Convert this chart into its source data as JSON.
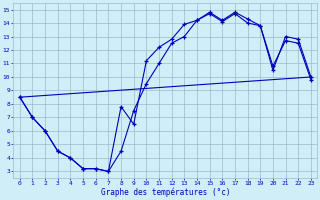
{
  "xlabel": "Graphe des températures (°c)",
  "xlim": [
    -0.5,
    23.5
  ],
  "ylim": [
    2.5,
    15.5
  ],
  "yticks": [
    3,
    4,
    5,
    6,
    7,
    8,
    9,
    10,
    11,
    12,
    13,
    14,
    15
  ],
  "xticks": [
    0,
    1,
    2,
    3,
    4,
    5,
    6,
    7,
    8,
    9,
    10,
    11,
    12,
    13,
    14,
    15,
    16,
    17,
    18,
    19,
    20,
    21,
    22,
    23
  ],
  "background_color": "#d0eef8",
  "grid_color": "#a0b8cc",
  "line_color": "#0000bb",
  "line1_x": [
    0,
    1,
    2,
    3,
    4,
    5,
    6,
    7,
    8,
    9,
    10,
    11,
    12,
    13,
    14,
    15,
    16,
    17,
    18,
    19,
    20,
    21,
    22,
    23
  ],
  "line1_y": [
    8.5,
    7.0,
    6.0,
    4.5,
    4.0,
    3.2,
    3.2,
    3.0,
    4.5,
    7.5,
    9.5,
    11.0,
    12.5,
    13.0,
    14.2,
    14.8,
    14.2,
    14.8,
    14.3,
    13.8,
    10.5,
    13.0,
    12.8,
    10.0
  ],
  "line2_x": [
    0,
    1,
    2,
    3,
    4,
    5,
    6,
    7,
    8,
    9,
    10,
    11,
    12,
    13,
    14,
    15,
    16,
    17,
    18,
    19,
    20,
    21,
    22,
    23
  ],
  "line2_y": [
    8.5,
    7.0,
    6.0,
    4.5,
    4.0,
    3.2,
    3.2,
    3.0,
    7.8,
    6.5,
    11.2,
    12.2,
    12.8,
    13.9,
    14.2,
    14.7,
    14.1,
    14.7,
    14.0,
    13.8,
    10.8,
    12.7,
    12.5,
    9.8
  ],
  "line3_x": [
    0,
    23
  ],
  "line3_y": [
    8.5,
    10.0
  ]
}
